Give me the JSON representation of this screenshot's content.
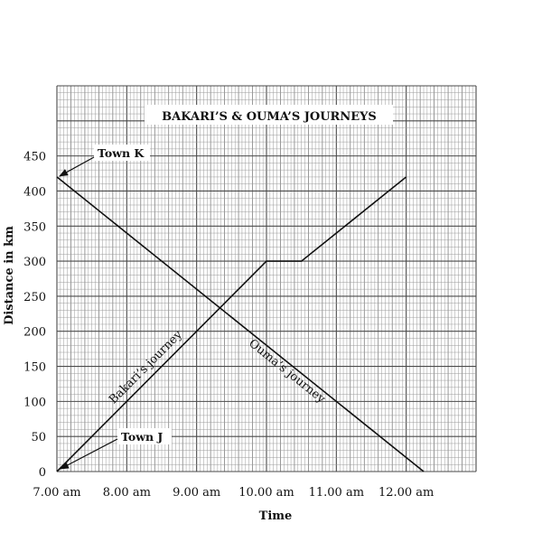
{
  "chart_data": {
    "type": "line",
    "title": "BAKARI’S & OUMA’S JOURNEYS",
    "xlabel": "Time",
    "ylabel": "Distance in km",
    "x_tick_labels": [
      "7.00 am",
      "8.00 am",
      "9.00 am",
      "10.00 am",
      "11.00 am",
      "12.00 am"
    ],
    "x_ticks_hours": [
      7,
      8,
      9,
      10,
      11,
      12
    ],
    "xlim": [
      "7.00 am",
      "1.00 pm"
    ],
    "xlim_hours": [
      7,
      13
    ],
    "y_ticks": [
      0,
      50,
      100,
      150,
      200,
      250,
      300,
      350,
      400,
      450
    ],
    "ylim": [
      0,
      550
    ],
    "grid": true,
    "series": [
      {
        "name": "Bakari’s journey",
        "x_hours": [
          7,
          10,
          10.5,
          12
        ],
        "y": [
          0,
          300,
          300,
          420
        ]
      },
      {
        "name": "Ouma’s journey",
        "x_hours": [
          7,
          12.25
        ],
        "y": [
          420,
          0
        ]
      }
    ],
    "annotations": [
      {
        "text": "Town K",
        "x_hours": 7,
        "y": 420
      },
      {
        "text": "Town J",
        "x_hours": 7,
        "y": 0
      }
    ]
  }
}
